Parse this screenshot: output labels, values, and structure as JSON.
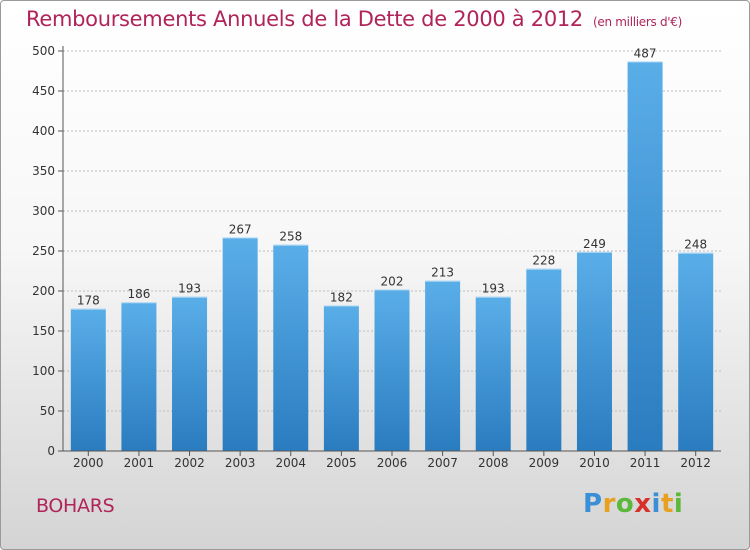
{
  "title": "Remboursements Annuels de la Dette de 2000 à 2012",
  "unit": "(en milliers d'€)",
  "place": "BOHARS",
  "logo": {
    "text": "Proxiti",
    "letters": [
      {
        "ch": "P",
        "color": "#3a8fd6"
      },
      {
        "ch": "r",
        "color": "#e8a020"
      },
      {
        "ch": "o",
        "color": "#5cb83a"
      },
      {
        "ch": "x",
        "color": "#d8302a"
      },
      {
        "ch": "i",
        "color": "#3a8fd6"
      },
      {
        "ch": "t",
        "color": "#e8a020"
      },
      {
        "ch": "i",
        "color": "#5cb83a"
      }
    ]
  },
  "colors": {
    "title": "#b0245a",
    "bar_light": "#5aaee8",
    "bar_dark": "#2a7cc0",
    "axis": "#555555"
  },
  "chart_data": {
    "type": "bar",
    "categories": [
      "2000",
      "2001",
      "2002",
      "2003",
      "2004",
      "2005",
      "2006",
      "2007",
      "2008",
      "2009",
      "2010",
      "2011",
      "2012"
    ],
    "values": [
      178,
      186,
      193,
      267,
      258,
      182,
      202,
      213,
      193,
      228,
      249,
      487,
      248
    ],
    "data_labels": [
      "178",
      "186",
      "193",
      "267",
      "258",
      "182",
      "202",
      "213",
      "193",
      "228",
      "249",
      "487",
      "248"
    ],
    "title": "Remboursements Annuels de la Dette de 2000 à 2012",
    "xlabel": "",
    "ylabel": "",
    "ylim": [
      0,
      500
    ],
    "yticks": [
      0,
      50,
      100,
      150,
      200,
      250,
      300,
      350,
      400,
      450,
      500
    ],
    "ytick_labels": [
      "0",
      "50",
      "100",
      "150",
      "200",
      "250",
      "300",
      "350",
      "400",
      "450",
      "500"
    ],
    "grid": true,
    "legend": "none"
  }
}
